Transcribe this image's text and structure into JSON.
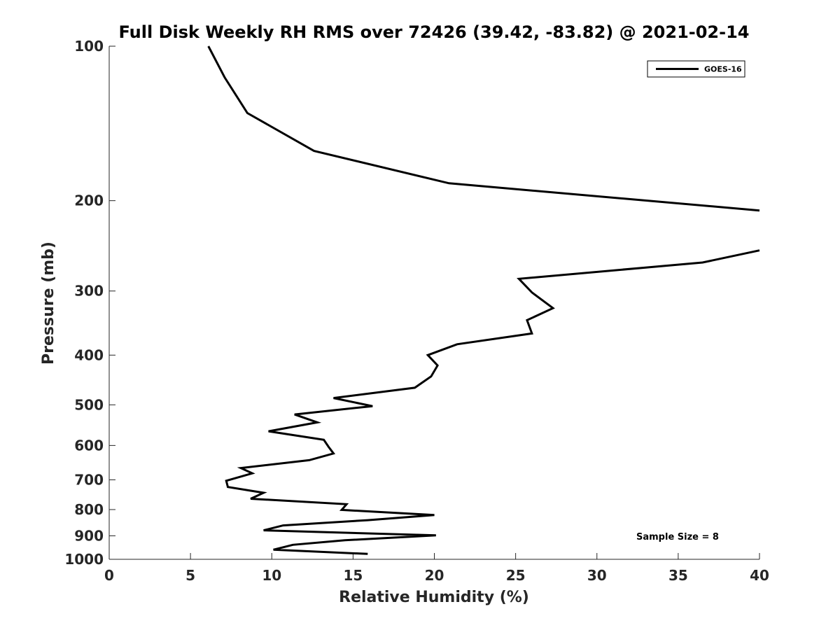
{
  "chart_data": {
    "type": "line",
    "title": "Full Disk Weekly RH RMS over 72426 (39.42, -83.82) @ 2021-02-14",
    "xlabel": "Relative Humidity (%)",
    "ylabel": "Pressure (mb)",
    "xlim": [
      0,
      40
    ],
    "ylim": [
      100,
      1000
    ],
    "y_scale": "log",
    "y_reversed": true,
    "grid": false,
    "legend_position": "top-right",
    "x_ticks": [
      0,
      5,
      10,
      15,
      20,
      25,
      30,
      35,
      40
    ],
    "x_tick_labels": [
      "0",
      "5",
      "10",
      "15",
      "20",
      "25",
      "30",
      "35",
      "40"
    ],
    "y_ticks": [
      100,
      200,
      300,
      400,
      500,
      600,
      700,
      800,
      900,
      1000
    ],
    "y_tick_labels": [
      "100",
      "200",
      "300",
      "400",
      "500",
      "600",
      "700",
      "800",
      "900",
      "1000"
    ],
    "annotation": "Sample Size = 8",
    "series": [
      {
        "name": "GOES-16",
        "color": "#000000",
        "points": [
          [
            6.1,
            100
          ],
          [
            7.1,
            115
          ],
          [
            8.5,
            135
          ],
          [
            12.6,
            160
          ],
          [
            20.9,
            185
          ],
          [
            40.0,
            209
          ],
          [
            null,
            225
          ],
          [
            40.0,
            250
          ],
          [
            36.5,
            264
          ],
          [
            25.2,
            284
          ],
          [
            26.0,
            302
          ],
          [
            27.3,
            324
          ],
          [
            25.7,
            342
          ],
          [
            26.0,
            363
          ],
          [
            21.4,
            381
          ],
          [
            19.6,
            400
          ],
          [
            20.2,
            419
          ],
          [
            19.8,
            440
          ],
          [
            18.8,
            463
          ],
          [
            13.8,
            485
          ],
          [
            16.2,
            503
          ],
          [
            11.4,
            522
          ],
          [
            12.8,
            541
          ],
          [
            9.8,
            563
          ],
          [
            13.2,
            585
          ],
          [
            13.5,
            604
          ],
          [
            13.8,
            622
          ],
          [
            12.3,
            641
          ],
          [
            8.1,
            664
          ],
          [
            8.8,
            680
          ],
          [
            7.2,
            703
          ],
          [
            7.3,
            723
          ],
          [
            9.5,
            742
          ],
          [
            8.7,
            762
          ],
          [
            14.6,
            781
          ],
          [
            14.3,
            801
          ],
          [
            20.0,
            820
          ],
          [
            15.9,
            839
          ],
          [
            10.7,
            859
          ],
          [
            9.5,
            878
          ],
          [
            20.1,
            898
          ],
          [
            14.5,
            918
          ],
          [
            11.3,
            937
          ],
          [
            10.1,
            958
          ],
          [
            15.9,
            976
          ]
        ]
      }
    ]
  }
}
